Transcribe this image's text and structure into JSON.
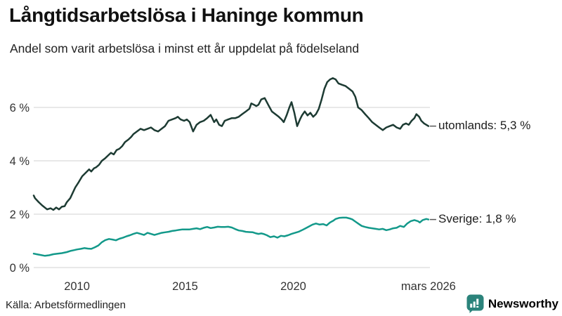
{
  "header": {
    "title": "Långtidsarbetslösa i Haninge kommun",
    "subtitle": "Andel som varit arbetslösa i minst ett år uppdelat på födelseland"
  },
  "series_labels": {
    "utomlands": "utomlands: 5,3 %",
    "sverige": "Sverige: 1,8 %"
  },
  "footer": {
    "source": "Källa: Arbetsförmedlingen",
    "brand": "Newsworthy"
  },
  "colors": {
    "line_utomlands": "#1d3b33",
    "line_sverige": "#13998a",
    "grid": "#d9d9d9",
    "axis_text": "#333333",
    "label_dash": "#555555",
    "brand_teal": "#2b837b"
  },
  "chart_data": {
    "type": "line",
    "title": "Långtidsarbetslösa i Haninge kommun",
    "subtitle": "Andel som varit arbetslösa i minst ett år uppdelat på födelseland",
    "xlabel": "",
    "ylabel": "",
    "x_range": [
      2008.0,
      2026.25
    ],
    "ylim": [
      0,
      7.4
    ],
    "grid": "horizontal",
    "legend_position": "line-end",
    "yticks": [
      {
        "value": 0,
        "label": "0 %"
      },
      {
        "value": 2,
        "label": "2 %"
      },
      {
        "value": 4,
        "label": "4 %"
      },
      {
        "value": 6,
        "label": "6 %"
      }
    ],
    "xticks": [
      {
        "year": 2010,
        "label": "2010"
      },
      {
        "year": 2015,
        "label": "2015"
      },
      {
        "year": 2020,
        "label": "2020"
      },
      {
        "year": 2026.25,
        "label": "mars 2026"
      }
    ],
    "series": [
      {
        "name": "utomlands",
        "end_label": "utomlands: 5,3 %",
        "last_value_text": "5,3 %",
        "color": "#1d3b33",
        "points": [
          [
            2008.0,
            2.7
          ],
          [
            2008.06,
            2.6
          ],
          [
            2008.23,
            2.45
          ],
          [
            2008.39,
            2.33
          ],
          [
            2008.62,
            2.18
          ],
          [
            2008.78,
            2.22
          ],
          [
            2008.91,
            2.16
          ],
          [
            2009.04,
            2.25
          ],
          [
            2009.17,
            2.18
          ],
          [
            2009.3,
            2.28
          ],
          [
            2009.43,
            2.3
          ],
          [
            2009.53,
            2.45
          ],
          [
            2009.69,
            2.6
          ],
          [
            2009.92,
            3.0
          ],
          [
            2010.08,
            3.2
          ],
          [
            2010.24,
            3.42
          ],
          [
            2010.4,
            3.55
          ],
          [
            2010.56,
            3.68
          ],
          [
            2010.66,
            3.6
          ],
          [
            2010.79,
            3.72
          ],
          [
            2010.89,
            3.76
          ],
          [
            2011.02,
            3.85
          ],
          [
            2011.15,
            4.0
          ],
          [
            2011.31,
            4.1
          ],
          [
            2011.44,
            4.2
          ],
          [
            2011.57,
            4.3
          ],
          [
            2011.7,
            4.24
          ],
          [
            2011.83,
            4.4
          ],
          [
            2011.96,
            4.45
          ],
          [
            2012.09,
            4.55
          ],
          [
            2012.22,
            4.7
          ],
          [
            2012.38,
            4.8
          ],
          [
            2012.51,
            4.9
          ],
          [
            2012.61,
            5.0
          ],
          [
            2012.77,
            5.1
          ],
          [
            2012.94,
            5.2
          ],
          [
            2013.1,
            5.15
          ],
          [
            2013.26,
            5.2
          ],
          [
            2013.42,
            5.25
          ],
          [
            2013.58,
            5.15
          ],
          [
            2013.75,
            5.1
          ],
          [
            2013.91,
            5.2
          ],
          [
            2014.07,
            5.3
          ],
          [
            2014.23,
            5.5
          ],
          [
            2014.4,
            5.55
          ],
          [
            2014.56,
            5.6
          ],
          [
            2014.66,
            5.65
          ],
          [
            2014.79,
            5.55
          ],
          [
            2014.95,
            5.5
          ],
          [
            2015.08,
            5.55
          ],
          [
            2015.21,
            5.45
          ],
          [
            2015.37,
            5.1
          ],
          [
            2015.53,
            5.35
          ],
          [
            2015.69,
            5.45
          ],
          [
            2015.86,
            5.5
          ],
          [
            2016.02,
            5.6
          ],
          [
            2016.18,
            5.72
          ],
          [
            2016.34,
            5.45
          ],
          [
            2016.44,
            5.55
          ],
          [
            2016.57,
            5.35
          ],
          [
            2016.7,
            5.3
          ],
          [
            2016.83,
            5.5
          ],
          [
            2016.99,
            5.55
          ],
          [
            2017.16,
            5.6
          ],
          [
            2017.32,
            5.6
          ],
          [
            2017.48,
            5.65
          ],
          [
            2017.64,
            5.75
          ],
          [
            2017.81,
            5.85
          ],
          [
            2017.97,
            5.95
          ],
          [
            2018.06,
            6.15
          ],
          [
            2018.19,
            6.1
          ],
          [
            2018.29,
            6.05
          ],
          [
            2018.39,
            6.1
          ],
          [
            2018.52,
            6.3
          ],
          [
            2018.68,
            6.35
          ],
          [
            2018.84,
            6.1
          ],
          [
            2019.01,
            5.85
          ],
          [
            2019.17,
            5.75
          ],
          [
            2019.33,
            5.65
          ],
          [
            2019.46,
            5.55
          ],
          [
            2019.56,
            5.45
          ],
          [
            2019.69,
            5.7
          ],
          [
            2019.82,
            6.0
          ],
          [
            2019.92,
            6.2
          ],
          [
            2020.05,
            5.8
          ],
          [
            2020.18,
            5.3
          ],
          [
            2020.31,
            5.55
          ],
          [
            2020.4,
            5.7
          ],
          [
            2020.53,
            5.85
          ],
          [
            2020.66,
            5.7
          ],
          [
            2020.79,
            5.8
          ],
          [
            2020.92,
            5.65
          ],
          [
            2021.05,
            5.75
          ],
          [
            2021.18,
            5.95
          ],
          [
            2021.31,
            6.3
          ],
          [
            2021.44,
            6.7
          ],
          [
            2021.57,
            6.95
          ],
          [
            2021.7,
            7.05
          ],
          [
            2021.83,
            7.1
          ],
          [
            2021.96,
            7.05
          ],
          [
            2022.09,
            6.9
          ],
          [
            2022.25,
            6.85
          ],
          [
            2022.42,
            6.8
          ],
          [
            2022.58,
            6.7
          ],
          [
            2022.74,
            6.6
          ],
          [
            2022.87,
            6.4
          ],
          [
            2023.0,
            6.0
          ],
          [
            2023.16,
            5.9
          ],
          [
            2023.32,
            5.75
          ],
          [
            2023.49,
            5.6
          ],
          [
            2023.65,
            5.45
          ],
          [
            2023.81,
            5.35
          ],
          [
            2023.97,
            5.25
          ],
          [
            2024.14,
            5.15
          ],
          [
            2024.3,
            5.25
          ],
          [
            2024.46,
            5.3
          ],
          [
            2024.62,
            5.35
          ],
          [
            2024.78,
            5.25
          ],
          [
            2024.94,
            5.2
          ],
          [
            2025.07,
            5.35
          ],
          [
            2025.21,
            5.4
          ],
          [
            2025.34,
            5.35
          ],
          [
            2025.47,
            5.5
          ],
          [
            2025.6,
            5.6
          ],
          [
            2025.69,
            5.75
          ],
          [
            2025.82,
            5.65
          ],
          [
            2025.92,
            5.5
          ],
          [
            2026.05,
            5.4
          ],
          [
            2026.15,
            5.35
          ],
          [
            2026.25,
            5.3
          ]
        ]
      },
      {
        "name": "Sverige",
        "end_label": "Sverige: 1,8 %",
        "last_value_text": "1,8 %",
        "color": "#13998a",
        "points": [
          [
            2008.0,
            0.52
          ],
          [
            2008.13,
            0.5
          ],
          [
            2008.32,
            0.47
          ],
          [
            2008.52,
            0.44
          ],
          [
            2008.71,
            0.46
          ],
          [
            2008.91,
            0.5
          ],
          [
            2009.1,
            0.52
          ],
          [
            2009.3,
            0.54
          ],
          [
            2009.53,
            0.58
          ],
          [
            2009.69,
            0.62
          ],
          [
            2009.85,
            0.65
          ],
          [
            2010.01,
            0.68
          ],
          [
            2010.18,
            0.7
          ],
          [
            2010.34,
            0.73
          ],
          [
            2010.5,
            0.71
          ],
          [
            2010.66,
            0.7
          ],
          [
            2010.83,
            0.76
          ],
          [
            2010.99,
            0.83
          ],
          [
            2011.15,
            0.95
          ],
          [
            2011.31,
            1.03
          ],
          [
            2011.48,
            1.07
          ],
          [
            2011.64,
            1.05
          ],
          [
            2011.8,
            1.02
          ],
          [
            2011.96,
            1.08
          ],
          [
            2012.13,
            1.12
          ],
          [
            2012.29,
            1.17
          ],
          [
            2012.45,
            1.21
          ],
          [
            2012.61,
            1.26
          ],
          [
            2012.77,
            1.3
          ],
          [
            2012.94,
            1.26
          ],
          [
            2013.1,
            1.22
          ],
          [
            2013.26,
            1.3
          ],
          [
            2013.42,
            1.26
          ],
          [
            2013.58,
            1.22
          ],
          [
            2013.75,
            1.26
          ],
          [
            2013.91,
            1.3
          ],
          [
            2014.07,
            1.32
          ],
          [
            2014.23,
            1.34
          ],
          [
            2014.4,
            1.37
          ],
          [
            2014.56,
            1.39
          ],
          [
            2014.72,
            1.41
          ],
          [
            2014.88,
            1.43
          ],
          [
            2015.05,
            1.43
          ],
          [
            2015.21,
            1.43
          ],
          [
            2015.37,
            1.45
          ],
          [
            2015.53,
            1.47
          ],
          [
            2015.69,
            1.44
          ],
          [
            2015.86,
            1.49
          ],
          [
            2016.02,
            1.52
          ],
          [
            2016.18,
            1.48
          ],
          [
            2016.34,
            1.5
          ],
          [
            2016.51,
            1.53
          ],
          [
            2016.67,
            1.52
          ],
          [
            2016.83,
            1.52
          ],
          [
            2016.99,
            1.53
          ],
          [
            2017.16,
            1.5
          ],
          [
            2017.32,
            1.44
          ],
          [
            2017.48,
            1.39
          ],
          [
            2017.64,
            1.37
          ],
          [
            2017.81,
            1.34
          ],
          [
            2017.97,
            1.33
          ],
          [
            2018.13,
            1.32
          ],
          [
            2018.29,
            1.28
          ],
          [
            2018.39,
            1.26
          ],
          [
            2018.52,
            1.28
          ],
          [
            2018.62,
            1.26
          ],
          [
            2018.78,
            1.21
          ],
          [
            2018.94,
            1.14
          ],
          [
            2019.11,
            1.17
          ],
          [
            2019.27,
            1.12
          ],
          [
            2019.43,
            1.19
          ],
          [
            2019.59,
            1.17
          ],
          [
            2019.76,
            1.21
          ],
          [
            2019.92,
            1.26
          ],
          [
            2020.08,
            1.3
          ],
          [
            2020.24,
            1.34
          ],
          [
            2020.4,
            1.4
          ],
          [
            2020.57,
            1.47
          ],
          [
            2020.73,
            1.54
          ],
          [
            2020.89,
            1.61
          ],
          [
            2021.05,
            1.65
          ],
          [
            2021.22,
            1.61
          ],
          [
            2021.38,
            1.63
          ],
          [
            2021.54,
            1.58
          ],
          [
            2021.7,
            1.69
          ],
          [
            2021.86,
            1.76
          ],
          [
            2021.96,
            1.82
          ],
          [
            2022.12,
            1.86
          ],
          [
            2022.29,
            1.87
          ],
          [
            2022.45,
            1.87
          ],
          [
            2022.61,
            1.84
          ],
          [
            2022.74,
            1.8
          ],
          [
            2022.84,
            1.74
          ],
          [
            2023.0,
            1.65
          ],
          [
            2023.16,
            1.56
          ],
          [
            2023.32,
            1.52
          ],
          [
            2023.49,
            1.49
          ],
          [
            2023.65,
            1.47
          ],
          [
            2023.81,
            1.45
          ],
          [
            2023.97,
            1.43
          ],
          [
            2024.14,
            1.45
          ],
          [
            2024.3,
            1.4
          ],
          [
            2024.46,
            1.43
          ],
          [
            2024.62,
            1.47
          ],
          [
            2024.78,
            1.49
          ],
          [
            2024.94,
            1.56
          ],
          [
            2025.11,
            1.52
          ],
          [
            2025.27,
            1.65
          ],
          [
            2025.43,
            1.74
          ],
          [
            2025.6,
            1.78
          ],
          [
            2025.76,
            1.74
          ],
          [
            2025.85,
            1.69
          ],
          [
            2025.98,
            1.78
          ],
          [
            2026.15,
            1.82
          ],
          [
            2026.25,
            1.8
          ]
        ]
      }
    ]
  }
}
